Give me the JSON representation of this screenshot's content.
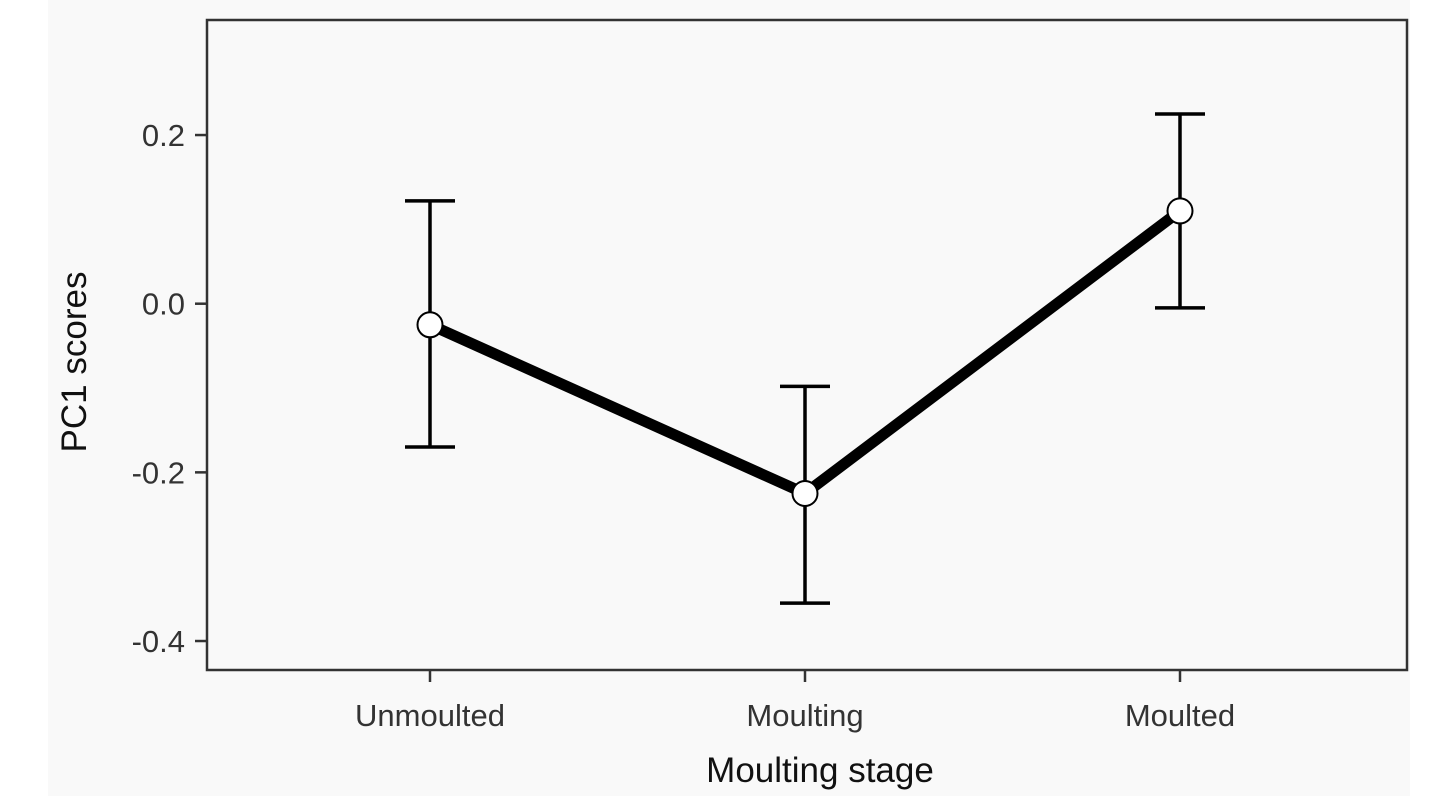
{
  "chart_data": {
    "type": "line",
    "title": "",
    "xlabel": "Moulting stage",
    "ylabel": "PC1 scores",
    "categories": [
      "Unmoulted",
      "Moulting",
      "Moulted"
    ],
    "series": [
      {
        "values": [
          -0.025,
          -0.225,
          0.11
        ],
        "error_lower": [
          -0.17,
          -0.355,
          -0.005
        ],
        "error_upper": [
          0.122,
          -0.098,
          0.225
        ]
      }
    ],
    "yticks": [
      0.2,
      0.0,
      -0.2,
      -0.4
    ],
    "ytick_labels": [
      "0.2",
      "0.0",
      "-0.2",
      "-0.4"
    ],
    "ylim": [
      -0.44,
      0.34
    ],
    "grid": false,
    "legend": "none",
    "colors": {
      "background": "#f9f9f9",
      "line": "#000000",
      "marker_fill": "#ffffff",
      "axis": "#333333"
    }
  }
}
